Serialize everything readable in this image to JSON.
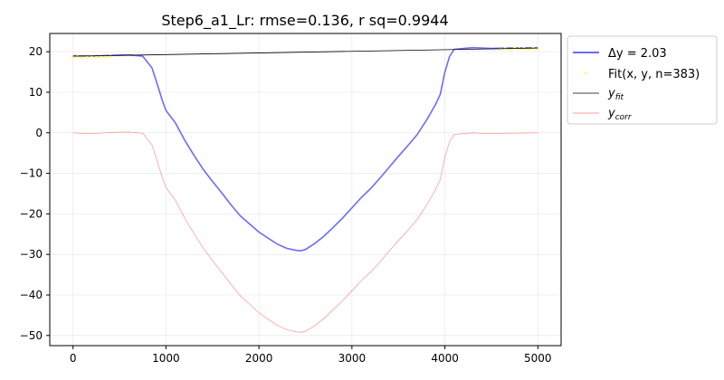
{
  "chart_data": {
    "type": "line",
    "title": "Step6_a1_Lr: rmse=0.136, r sq=0.9944",
    "xlabel": "",
    "ylabel": "",
    "xlim": [
      -250,
      5250
    ],
    "ylim": [
      -52.5,
      24.5
    ],
    "grid": true,
    "legend_placement": "outside-top-right",
    "x_ticks": [
      0,
      1000,
      2000,
      3000,
      4000,
      5000
    ],
    "x_tick_labels": [
      "0",
      "1000",
      "2000",
      "3000",
      "4000",
      "5000"
    ],
    "y_ticks": [
      20,
      10,
      0,
      -10,
      -20,
      -30,
      -40,
      -50
    ],
    "y_tick_labels": [
      "20",
      "10",
      "0",
      "−10",
      "−20",
      "−30",
      "−40",
      "−50"
    ],
    "series": [
      {
        "name": "Δy = 2.03",
        "legend_label": "Δy = 2.03",
        "color": "#6b6bff",
        "style": "line",
        "x": [
          0,
          200,
          400,
          600,
          750,
          850,
          920,
          960,
          1000,
          1100,
          1200,
          1300,
          1400,
          1500,
          1600,
          1700,
          1800,
          1900,
          2000,
          2100,
          2200,
          2300,
          2400,
          2450,
          2500,
          2600,
          2700,
          2800,
          2900,
          3000,
          3100,
          3200,
          3300,
          3400,
          3500,
          3600,
          3700,
          3800,
          3850,
          3900,
          3950,
          4000,
          4050,
          4100,
          4300,
          4500,
          4700,
          5000
        ],
        "y": [
          19.0,
          18.9,
          19.1,
          19.2,
          18.9,
          16.0,
          11.0,
          8.0,
          5.5,
          2.5,
          -1.8,
          -5.5,
          -9.0,
          -12.0,
          -14.8,
          -17.8,
          -20.5,
          -22.5,
          -24.5,
          -26.0,
          -27.5,
          -28.5,
          -29.0,
          -29.1,
          -28.8,
          -27.3,
          -25.5,
          -23.3,
          -21.0,
          -18.5,
          -16.0,
          -13.8,
          -11.2,
          -8.5,
          -5.8,
          -3.2,
          -0.5,
          3.0,
          5.0,
          7.0,
          9.5,
          15.0,
          18.8,
          20.6,
          21.0,
          20.8,
          20.9,
          21.0
        ]
      },
      {
        "name": "Fit(x, y, n=383)",
        "legend_label": "Fit(x, y, n=383)",
        "color": "#ffff66",
        "style": "markers",
        "x": [
          0,
          50,
          100,
          150,
          200,
          250,
          300,
          350,
          400,
          4600,
          4650,
          4700,
          4750,
          4800,
          4850,
          4900,
          4950,
          5000
        ],
        "y": [
          18.6,
          18.8,
          18.5,
          18.7,
          18.9,
          18.6,
          18.8,
          18.7,
          18.9,
          20.6,
          20.8,
          20.5,
          20.9,
          20.7,
          20.8,
          20.6,
          20.9,
          20.7
        ]
      },
      {
        "name": "y_fit",
        "legend_label": "y",
        "legend_sub": "fit",
        "color": "#000000",
        "style": "line",
        "x": [
          0,
          5000
        ],
        "y": [
          18.9,
          20.9
        ]
      },
      {
        "name": "y_corr",
        "legend_label": "y",
        "legend_sub": "corr",
        "color": "#ff7f7f",
        "style": "line",
        "x": [
          0,
          200,
          400,
          600,
          750,
          850,
          920,
          960,
          1000,
          1100,
          1200,
          1300,
          1400,
          1500,
          1600,
          1700,
          1800,
          1900,
          2000,
          2100,
          2200,
          2300,
          2400,
          2450,
          2500,
          2600,
          2700,
          2800,
          2900,
          3000,
          3100,
          3200,
          3300,
          3400,
          3500,
          3600,
          3700,
          3800,
          3850,
          3900,
          3950,
          4000,
          4050,
          4100,
          4300,
          4500,
          4700,
          5000
        ],
        "y": [
          0.0,
          -0.2,
          0.1,
          0.2,
          -0.1,
          -3.0,
          -8.0,
          -11.0,
          -13.5,
          -16.6,
          -21.0,
          -24.8,
          -28.4,
          -31.5,
          -34.4,
          -37.4,
          -40.2,
          -42.3,
          -44.4,
          -46.0,
          -47.5,
          -48.6,
          -49.1,
          -49.2,
          -49.0,
          -47.6,
          -45.8,
          -43.6,
          -41.4,
          -39.0,
          -36.5,
          -34.4,
          -31.9,
          -29.2,
          -26.6,
          -24.1,
          -21.4,
          -18.0,
          -16.0,
          -14.0,
          -11.5,
          -6.0,
          -2.2,
          -0.4,
          0.0,
          -0.2,
          -0.1,
          0.0
        ]
      }
    ]
  }
}
